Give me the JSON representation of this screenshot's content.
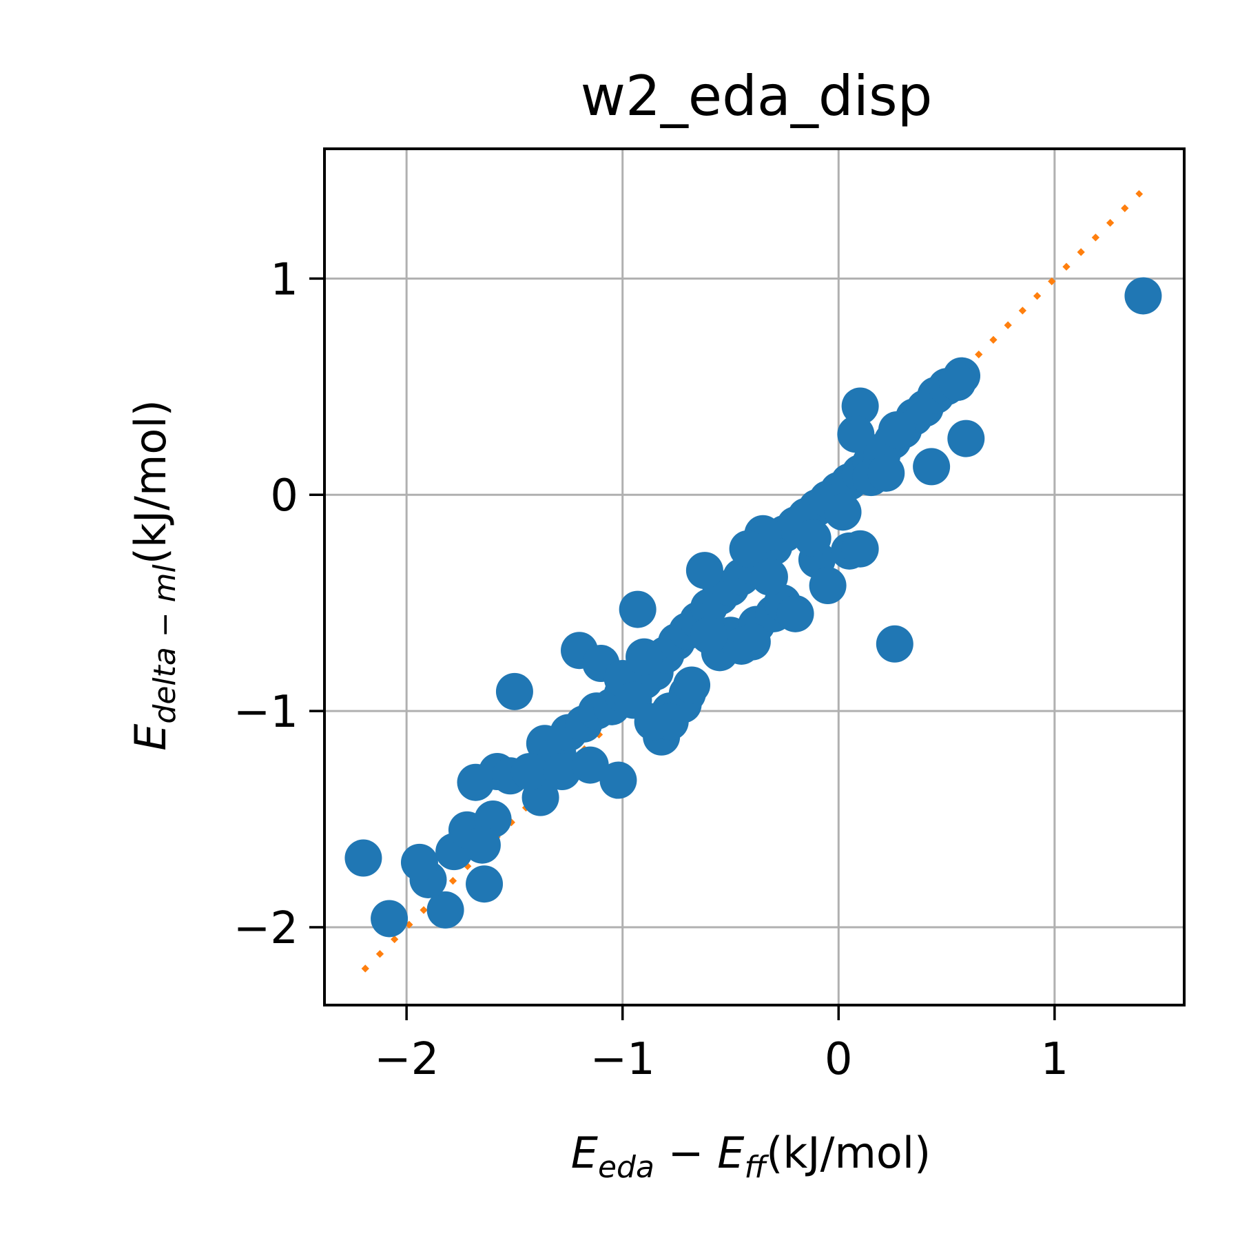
{
  "chart_data": {
    "type": "scatter",
    "title": "w2_eda_disp",
    "xlabel": {
      "main": "E",
      "sub": "eda",
      "mid": " − E",
      "sub2": "ff",
      "unit": "(kJ/mol)"
    },
    "ylabel": {
      "main": "E",
      "sub": "delta − ml",
      "unit": "(kJ/mol)"
    },
    "xlim": [
      -2.38,
      1.6
    ],
    "ylim": [
      -2.36,
      1.6
    ],
    "x_ticks": [
      -2,
      -1,
      0,
      1
    ],
    "y_ticks": [
      -2,
      -1,
      0,
      1
    ],
    "x_tick_labels": [
      "−2",
      "−1",
      "0",
      "1"
    ],
    "y_tick_labels": [
      "−2",
      "−1",
      "0",
      "1"
    ],
    "grid": true,
    "colors": {
      "points": "#2077b4",
      "reference_line": "#ff7f0e"
    },
    "reference_line": {
      "style": "dotted",
      "from": [
        -2.2,
        -2.2
      ],
      "to": [
        1.4,
        1.4
      ]
    },
    "series": [
      {
        "x": [
          1.41,
          -2.2,
          -2.08,
          -1.5,
          0.26,
          -0.93,
          0.59,
          0.43,
          0.1,
          0.57,
          -1.82,
          -1.64,
          -1.9,
          -1.94,
          -1.78,
          -1.72,
          -1.6,
          -1.65,
          -1.68,
          -1.58,
          -1.52,
          -1.38,
          -1.36,
          -1.3,
          -1.25,
          -1.18,
          -1.12,
          -1.05,
          -1.0,
          -0.95,
          -0.9,
          -0.85,
          -0.8,
          -0.75,
          -0.7,
          -0.65,
          -0.6,
          -0.55,
          -0.5,
          -0.45,
          -0.4,
          -0.35,
          -0.3,
          -0.25,
          -0.2,
          -0.15,
          -0.1,
          -0.05,
          0.0,
          0.05,
          0.1,
          0.15,
          0.2,
          0.25,
          0.3,
          0.35,
          0.4,
          0.45,
          0.5,
          0.55,
          -1.2,
          -1.1,
          -1.0,
          -0.95,
          -0.82,
          -0.78,
          -0.72,
          -0.7,
          -0.68,
          -0.55,
          -0.5,
          -0.45,
          -0.38,
          -0.3,
          -0.26,
          -0.2,
          -0.1,
          -0.05,
          0.05,
          0.1,
          0.08,
          0.2,
          0.15,
          -0.35,
          -0.42,
          -1.43,
          -1.28,
          -1.02,
          -0.78,
          -0.62,
          -1.15,
          -0.9,
          -0.86,
          -0.32,
          -0.12,
          0.02,
          0.22,
          0.27,
          -0.4,
          -0.6
        ],
        "y": [
          0.92,
          -1.68,
          -1.96,
          -0.91,
          -0.69,
          -0.53,
          0.26,
          0.13,
          0.41,
          0.55,
          -1.92,
          -1.8,
          -1.78,
          -1.7,
          -1.65,
          -1.55,
          -1.5,
          -1.62,
          -1.33,
          -1.28,
          -1.3,
          -1.4,
          -1.15,
          -1.2,
          -1.1,
          -1.06,
          -1.0,
          -0.98,
          -0.92,
          -0.9,
          -0.86,
          -0.82,
          -0.74,
          -0.68,
          -0.63,
          -0.58,
          -0.52,
          -0.47,
          -0.43,
          -0.38,
          -0.33,
          -0.28,
          -0.24,
          -0.18,
          -0.14,
          -0.1,
          -0.06,
          -0.02,
          0.02,
          0.06,
          0.1,
          0.15,
          0.2,
          0.25,
          0.3,
          0.36,
          0.4,
          0.46,
          0.5,
          0.52,
          -0.72,
          -0.78,
          -0.85,
          -0.95,
          -1.12,
          -1.0,
          -0.97,
          -0.92,
          -0.88,
          -0.73,
          -0.65,
          -0.7,
          -0.6,
          -0.55,
          -0.5,
          -0.55,
          -0.3,
          -0.42,
          -0.26,
          -0.25,
          0.28,
          0.18,
          0.08,
          -0.18,
          -0.25,
          -1.28,
          -1.28,
          -1.32,
          -1.05,
          -0.35,
          -1.25,
          -0.75,
          -1.05,
          -0.38,
          -0.2,
          -0.08,
          0.1,
          0.3,
          -0.68,
          -0.65
        ]
      }
    ]
  }
}
